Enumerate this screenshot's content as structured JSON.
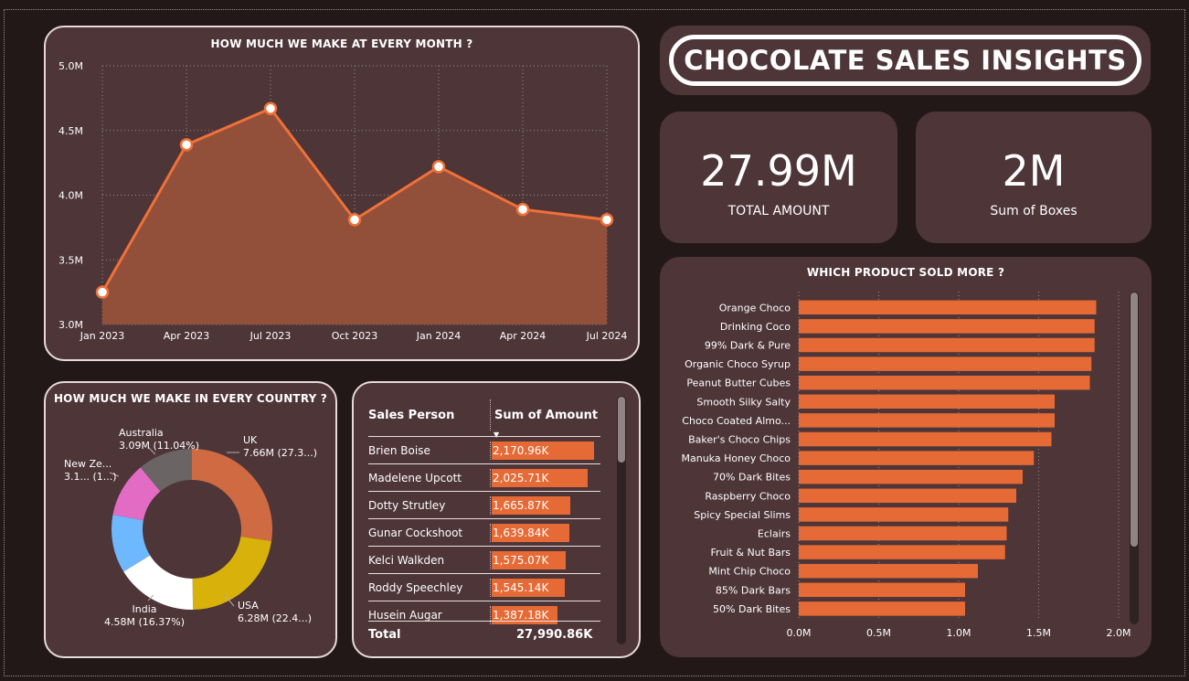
{
  "title": "CHOCOLATE SALES INSIGHTS",
  "kpis": {
    "total_amount": {
      "value": "27.99M",
      "label": "TOTAL AMOUNT"
    },
    "boxes": {
      "value": "2M",
      "label": "Sum of Boxes"
    }
  },
  "colors": {
    "background": "#231818",
    "card": "#4d3538",
    "accent": "#e56a36",
    "line": "#f07038"
  },
  "monthly_chart": {
    "title": "HOW MUCH WE MAKE AT EVERY MONTH ?",
    "chart_data": {
      "type": "area",
      "x": [
        "Jan 2023",
        "Apr 2023",
        "Jul 2023",
        "Oct 2023",
        "Jan 2024",
        "Apr 2024",
        "Jul 2024"
      ],
      "values": [
        3.25,
        4.39,
        4.67,
        3.81,
        4.22,
        3.89,
        3.81
      ],
      "y_ticks": [
        "3.0M",
        "3.5M",
        "4.0M",
        "4.5M",
        "5.0M"
      ],
      "ylim": [
        3.0,
        5.0
      ],
      "grid": true
    }
  },
  "country_chart": {
    "title": "HOW MUCH WE MAKE IN EVERY COUNTRY ?",
    "chart_data": {
      "type": "pie",
      "donut": true,
      "slices": [
        {
          "name": "UK",
          "detail": "7.66M (27.3...)",
          "value": 7.66,
          "color": "#d06a42"
        },
        {
          "name": "USA",
          "detail": "6.28M (22.4...)",
          "value": 6.28,
          "color": "#d8b20a"
        },
        {
          "name": "India",
          "detail": "4.58M (16.37%)",
          "value": 4.58,
          "color": "#ffffff"
        },
        {
          "name": "",
          "detail": "",
          "value": 3.28,
          "color": "#6db8ff"
        },
        {
          "name": "New Ze...",
          "detail": "3.1... (1...)",
          "value": 3.1,
          "color": "#e26bc4"
        },
        {
          "name": "Australia",
          "detail": "3.09M (11.04%)",
          "value": 3.09,
          "color": "#6a6464"
        }
      ]
    }
  },
  "sales_table": {
    "col1": "Sales Person",
    "col2": "Sum of Amount",
    "sort_indicator": "▼",
    "max": 2170.96,
    "rows": [
      {
        "name": "Brien Boise",
        "amount": "2,170.96K",
        "value": 2170.96
      },
      {
        "name": "Madelene Upcott",
        "amount": "2,025.71K",
        "value": 2025.71
      },
      {
        "name": "Dotty Strutley",
        "amount": "1,665.87K",
        "value": 1665.87
      },
      {
        "name": "Gunar Cockshoot",
        "amount": "1,639.84K",
        "value": 1639.84
      },
      {
        "name": "Kelci Walkden",
        "amount": "1,575.07K",
        "value": 1575.07
      },
      {
        "name": "Roddy Speechley",
        "amount": "1,545.14K",
        "value": 1545.14
      },
      {
        "name": "Husein Augar",
        "amount": "1,387.18K",
        "value": 1387.18
      }
    ],
    "total_label": "Total",
    "total_value": "27,990.86K"
  },
  "product_chart": {
    "title": "WHICH PRODUCT SOLD MORE ?",
    "chart_data": {
      "type": "bar",
      "orientation": "horizontal",
      "categories": [
        "Orange Choco",
        "Drinking Coco",
        "99% Dark & Pure",
        "Organic Choco Syrup",
        "Peanut Butter Cubes",
        "Smooth Silky Salty",
        "Choco Coated Almo...",
        "Baker's Choco Chips",
        "Manuka Honey Choco",
        "70% Dark Bites",
        "Raspberry Choco",
        "Spicy Special Slims",
        "Eclairs",
        "Fruit & Nut Bars",
        "Mint Chip Choco",
        "85% Dark Bars",
        "50% Dark Bites"
      ],
      "values": [
        1.86,
        1.85,
        1.85,
        1.83,
        1.82,
        1.6,
        1.6,
        1.58,
        1.47,
        1.4,
        1.36,
        1.31,
        1.3,
        1.29,
        1.12,
        1.04,
        1.04
      ],
      "x_ticks": [
        "0.0M",
        "0.5M",
        "1.0M",
        "1.5M",
        "2.0M"
      ],
      "xlim": [
        0,
        2.0
      ],
      "grid": true
    }
  }
}
